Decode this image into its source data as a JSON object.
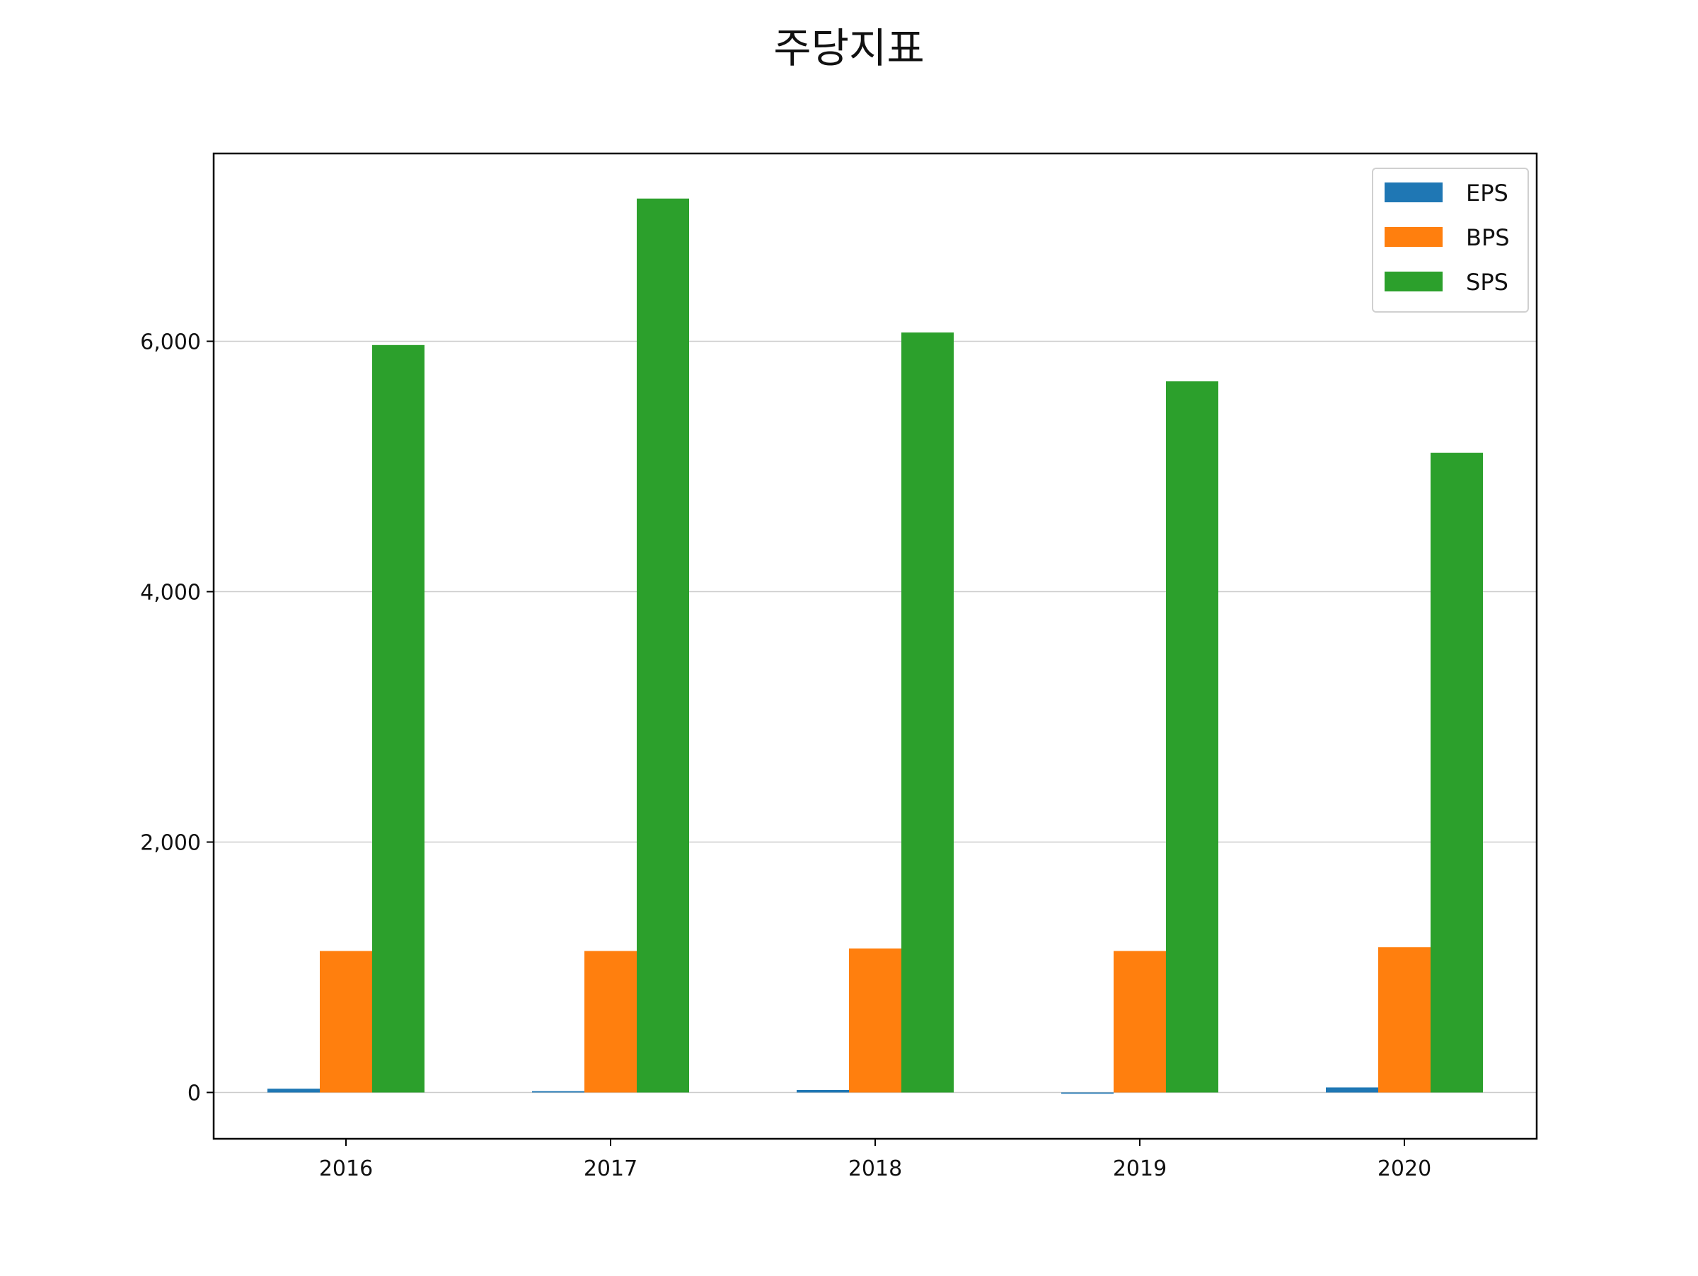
{
  "chart_data": {
    "type": "bar",
    "title": "주당지표",
    "xlabel": "",
    "ylabel": "",
    "categories": [
      "2016",
      "2017",
      "2018",
      "2019",
      "2020"
    ],
    "series": [
      {
        "name": "EPS",
        "color": "#1f77b4",
        "values": [
          30,
          10,
          20,
          -10,
          40
        ]
      },
      {
        "name": "BPS",
        "color": "#ff7f0e",
        "values": [
          1130,
          1130,
          1150,
          1130,
          1160
        ]
      },
      {
        "name": "SPS",
        "color": "#2ca02c",
        "values": [
          5970,
          7140,
          6070,
          5680,
          5110
        ]
      }
    ],
    "ylim": [
      -370,
      7500
    ],
    "yticks": [
      0,
      2000,
      4000,
      6000
    ],
    "ytick_labels": [
      "0",
      "2,000",
      "4,000",
      "6,000"
    ],
    "grid": "y-major",
    "legend": "top-right"
  }
}
